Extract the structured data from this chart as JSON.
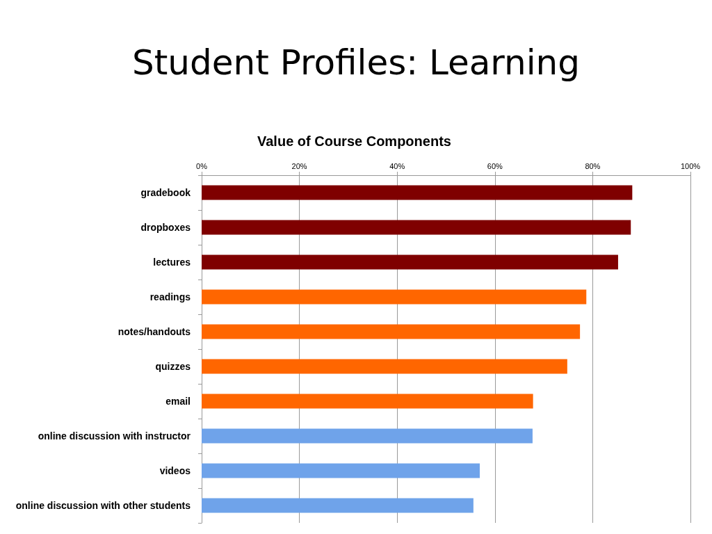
{
  "chart_data": {
    "type": "bar",
    "orientation": "horizontal",
    "title": "Student Profiles: Learning",
    "subtitle": "Value of Course Components",
    "categories": [
      "gradebook",
      "dropboxes",
      "lectures",
      "readings",
      "notes/handouts",
      "quizzes",
      "email",
      "online discussion with instructor",
      "videos",
      "online discussion with other students"
    ],
    "values": [
      88.1,
      87.8,
      85.2,
      78.7,
      77.4,
      74.8,
      67.8,
      67.7,
      56.9,
      55.6
    ],
    "colors": [
      "#7f0000",
      "#7f0000",
      "#7f0000",
      "#ff6600",
      "#ff6600",
      "#ff6600",
      "#ff6600",
      "#6fa3ea",
      "#6fa3ea",
      "#6fa3ea"
    ],
    "xlim": [
      0,
      100
    ],
    "xticks": [
      {
        "value": 0,
        "label": "0%"
      },
      {
        "value": 20,
        "label": "20%"
      },
      {
        "value": 40,
        "label": "40%"
      },
      {
        "value": 60,
        "label": "60%"
      },
      {
        "value": 80,
        "label": "80%"
      },
      {
        "value": 100,
        "label": "100%"
      }
    ],
    "grid": "x"
  }
}
